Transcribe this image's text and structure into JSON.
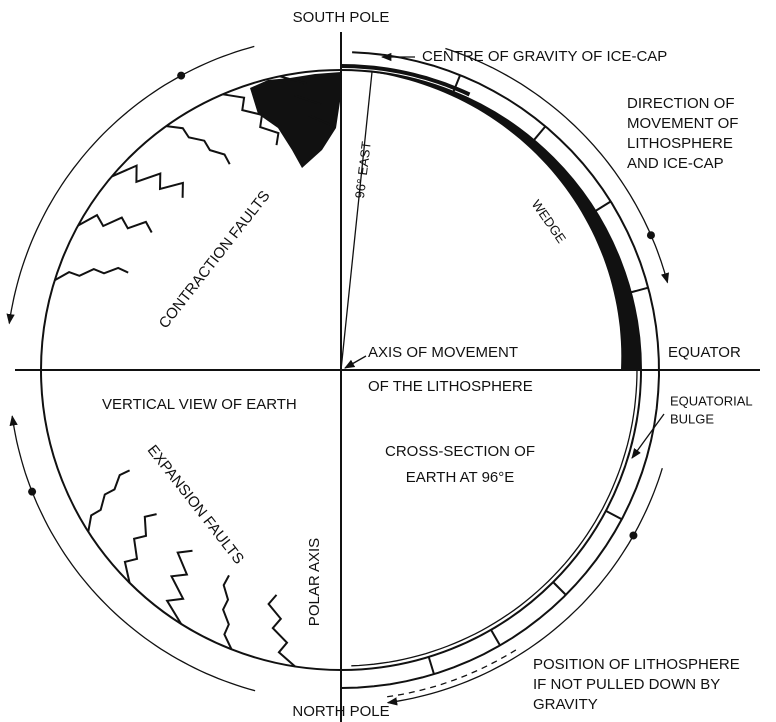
{
  "labels": {
    "south_pole": "SOUTH POLE",
    "north_pole": "NORTH POLE",
    "centre_of_gravity": "CENTRE OF GRAVITY OF ICE-CAP",
    "direction": [
      "DIRECTION OF",
      "MOVEMENT OF",
      "LITHOSPHERE",
      "AND ICE-CAP"
    ],
    "east": "96° EAST",
    "wedge": "WEDGE",
    "contraction_faults": "CONTRACTION FAULTS",
    "axis_of_movement": [
      "AXIS OF MOVEMENT",
      "OF THE LITHOSPHERE"
    ],
    "equator": "EQUATOR",
    "equatorial_bulge": [
      "EQUATORIAL",
      "BULGE"
    ],
    "vertical_view": "VERTICAL VIEW OF EARTH",
    "cross_section": [
      "CROSS-SECTION OF",
      "EARTH AT 96°E"
    ],
    "expansion_faults": "EXPANSION FAULTS",
    "polar_axis": "POLAR AXIS",
    "position": [
      "POSITION OF LITHOSPHERE",
      "IF NOT PULLED DOWN BY",
      "GRAVITY"
    ]
  }
}
